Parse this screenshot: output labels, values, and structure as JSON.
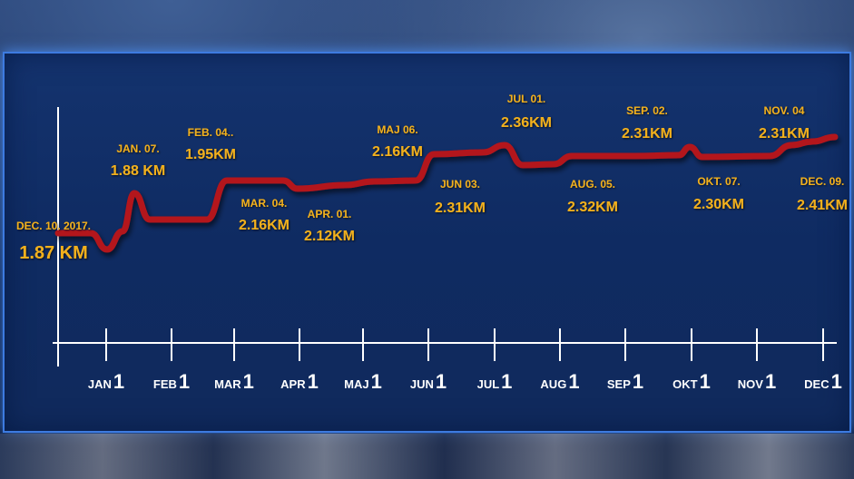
{
  "chart_data": {
    "type": "line",
    "title": "",
    "xlabel": "",
    "ylabel": "",
    "grid": false,
    "x_ticks": [
      {
        "month": "JAN",
        "day": "1"
      },
      {
        "month": "FEB",
        "day": "1"
      },
      {
        "month": "MAR",
        "day": "1"
      },
      {
        "month": "APR",
        "day": "1"
      },
      {
        "month": "MAJ",
        "day": "1"
      },
      {
        "month": "JUN",
        "day": "1"
      },
      {
        "month": "JUL",
        "day": "1"
      },
      {
        "month": "AUG",
        "day": "1"
      },
      {
        "month": "SEP",
        "day": "1"
      },
      {
        "month": "OKT",
        "day": "1"
      },
      {
        "month": "NOV",
        "day": "1"
      },
      {
        "month": "DEC",
        "day": "1"
      }
    ],
    "points": [
      {
        "date": "DEC. 10. 2017.",
        "value": "1.87 KM",
        "y": 1.87
      },
      {
        "date": "JAN. 07.",
        "value": "1.88 KM",
        "y": 1.88
      },
      {
        "date": "FEB. 04..",
        "value": "1.95KM",
        "y": 1.95
      },
      {
        "date": "MAR. 04.",
        "value": "2.16KM",
        "y": 2.16
      },
      {
        "date": "APR. 01.",
        "value": "2.12KM",
        "y": 2.12
      },
      {
        "date": "MAJ 06.",
        "value": "2.16KM",
        "y": 2.16
      },
      {
        "date": "JUN 03.",
        "value": "2.31KM",
        "y": 2.31
      },
      {
        "date": "JUL 01.",
        "value": "2.36KM",
        "y": 2.36
      },
      {
        "date": "AUG. 05.",
        "value": "2.32KM",
        "y": 2.32
      },
      {
        "date": "SEP. 02.",
        "value": "2.31KM",
        "y": 2.31
      },
      {
        "date": "OKT. 07.",
        "value": "2.30KM",
        "y": 2.3
      },
      {
        "date": "NOV. 04",
        "value": "2.31KM",
        "y": 2.31
      },
      {
        "date": "DEC. 09.",
        "value": "2.41KM",
        "y": 2.41
      }
    ],
    "line_color": "#b3141c",
    "label_color": "#f2b01e",
    "axis_color": "#ffffff"
  }
}
